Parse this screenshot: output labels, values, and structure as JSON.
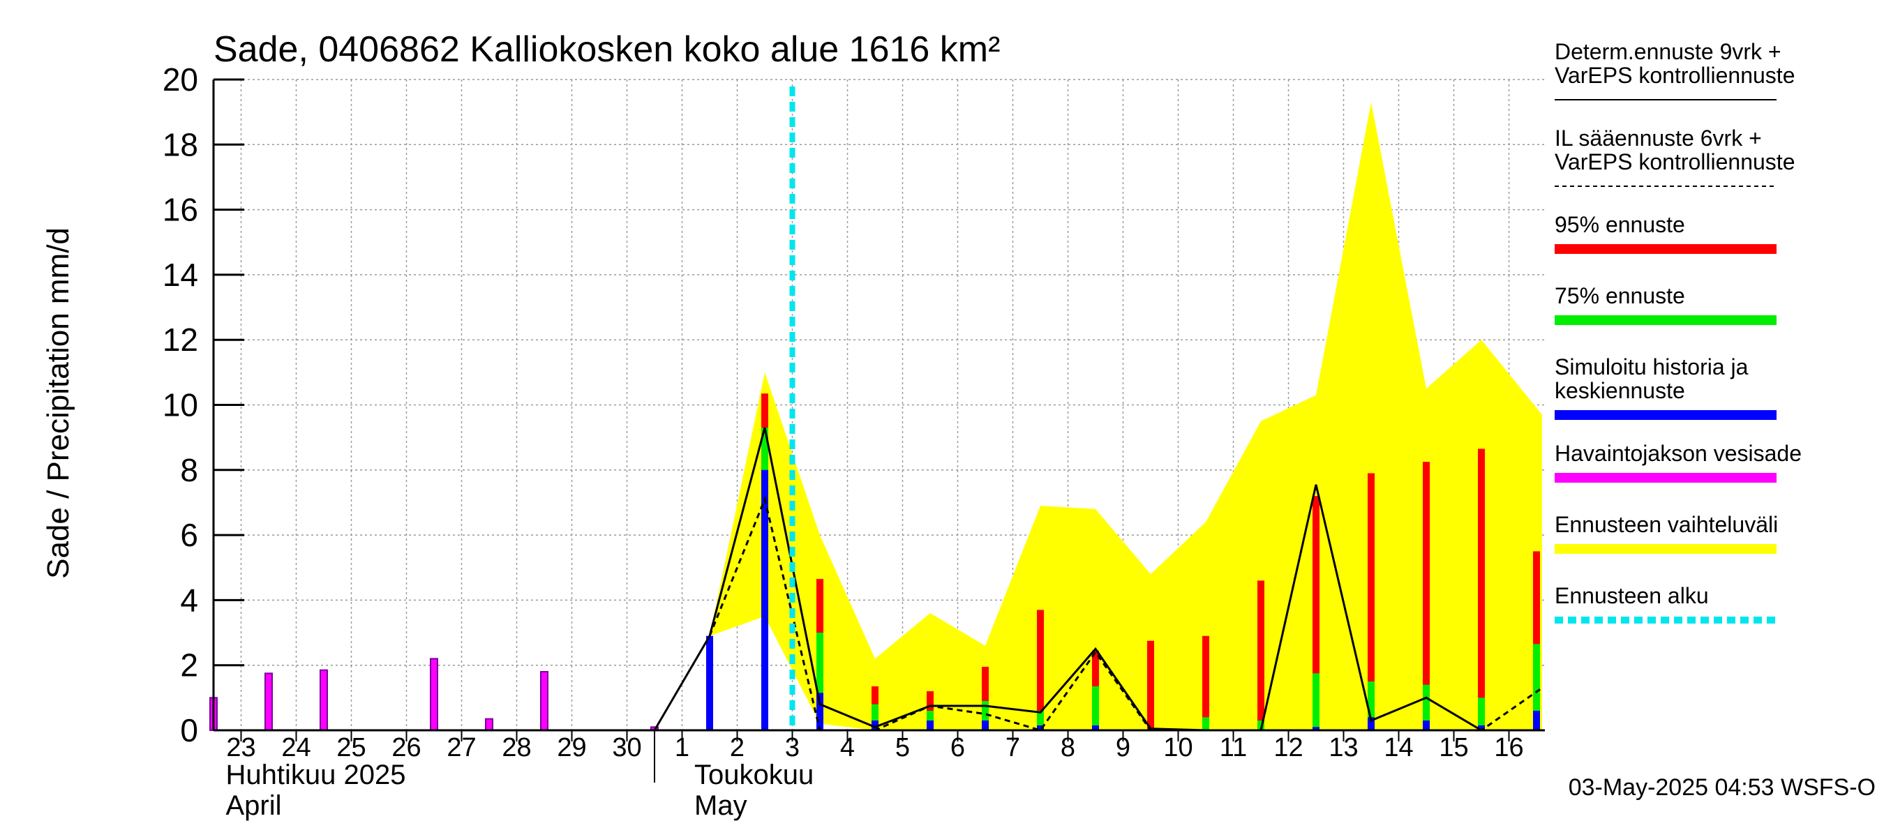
{
  "chart_data": {
    "type": "bar",
    "title": "Sade, 0406862 Kalliokosken koko alue 1616 km²",
    "ylabel": "Sade / Precipitation   mm/d",
    "ylim": [
      0,
      20
    ],
    "yticks": [
      0,
      2,
      4,
      6,
      8,
      10,
      12,
      14,
      16,
      18,
      20
    ],
    "x_range_days": [
      22.5,
      46.6
    ],
    "x_tick_labels": [
      {
        "x": 23,
        "label": "23"
      },
      {
        "x": 24,
        "label": "24"
      },
      {
        "x": 25,
        "label": "25"
      },
      {
        "x": 26,
        "label": "26"
      },
      {
        "x": 27,
        "label": "27"
      },
      {
        "x": 28,
        "label": "28"
      },
      {
        "x": 29,
        "label": "29"
      },
      {
        "x": 30,
        "label": "30"
      },
      {
        "x": 31,
        "label": "1"
      },
      {
        "x": 32,
        "label": "2"
      },
      {
        "x": 33,
        "label": "3"
      },
      {
        "x": 34,
        "label": "4"
      },
      {
        "x": 35,
        "label": "5"
      },
      {
        "x": 36,
        "label": "6"
      },
      {
        "x": 37,
        "label": "7"
      },
      {
        "x": 38,
        "label": "8"
      },
      {
        "x": 39,
        "label": "9"
      },
      {
        "x": 40,
        "label": "10"
      },
      {
        "x": 41,
        "label": "11"
      },
      {
        "x": 42,
        "label": "12"
      },
      {
        "x": 43,
        "label": "13"
      },
      {
        "x": 44,
        "label": "14"
      },
      {
        "x": 45,
        "label": "15"
      },
      {
        "x": 46,
        "label": "16"
      }
    ],
    "month_labels": [
      {
        "x": 23,
        "lines": [
          "Huhtikuu  2025",
          "April"
        ]
      },
      {
        "x": 31.5,
        "lines": [
          "Toukokuu",
          "May"
        ]
      }
    ],
    "month_boundary_x": 30.5,
    "forecast_start_x": 33,
    "observed": {
      "name": "Havaintojakson vesisade",
      "color": "#ff00ff",
      "x": [
        22.5,
        23.5,
        24.5,
        26.5,
        27.5,
        28.5,
        30.5
      ],
      "values": [
        1.0,
        1.75,
        1.85,
        2.2,
        0.35,
        1.8,
        0.1
      ]
    },
    "simulated_mean": {
      "name": "Simuloitu historia ja keskiennuste",
      "color": "#0000ff",
      "x": [
        31.5,
        32.5,
        33.5,
        34.5,
        35.5,
        36.5,
        37.5,
        38.5,
        39.5,
        40.5,
        41.5,
        42.5,
        43.5,
        44.5,
        45.5,
        46.5
      ],
      "values": [
        2.9,
        8.0,
        1.15,
        0.3,
        0.3,
        0.3,
        0.15,
        0.15,
        0.0,
        0.0,
        0.0,
        0.1,
        0.4,
        0.3,
        0.15,
        0.6
      ]
    },
    "p75": {
      "name": "75% ennuste",
      "color": "#00ee00",
      "x": [
        32.5,
        33.5,
        34.5,
        35.5,
        36.5,
        37.5,
        38.5,
        39.5,
        40.5,
        41.5,
        42.5,
        43.5,
        44.5,
        45.5,
        46.5
      ],
      "values": [
        9.3,
        3.0,
        0.8,
        0.6,
        0.9,
        0.6,
        1.35,
        0.0,
        0.4,
        0.3,
        1.75,
        1.5,
        1.4,
        1.0,
        2.65
      ]
    },
    "p95": {
      "name": "95% ennuste",
      "color": "#ff0000",
      "x": [
        32.5,
        33.5,
        34.5,
        35.5,
        36.5,
        37.5,
        38.5,
        39.5,
        40.5,
        41.5,
        42.5,
        43.5,
        44.5,
        45.5,
        46.5
      ],
      "values": [
        10.35,
        4.65,
        1.35,
        1.2,
        1.95,
        3.7,
        2.45,
        2.75,
        2.9,
        4.6,
        7.2,
        7.9,
        8.25,
        8.65,
        5.5
      ]
    },
    "range_band": {
      "name": "Ennusteen vaihteluväli",
      "color": "#ffff00",
      "x": [
        31.5,
        32.5,
        33.5,
        34.5,
        35.5,
        36.5,
        37.5,
        38.5,
        39.5,
        40.5,
        41.5,
        42.5,
        43.5,
        44.5,
        45.5,
        46.6
      ],
      "upper": [
        2.9,
        11.0,
        6.0,
        2.2,
        3.6,
        2.6,
        6.9,
        6.8,
        4.8,
        6.4,
        9.5,
        10.3,
        19.3,
        10.5,
        12.0,
        9.7
      ],
      "lower": [
        2.9,
        3.5,
        0.2,
        0.0,
        0.0,
        0.0,
        0.0,
        0.0,
        0.0,
        0.0,
        0.0,
        0.0,
        0.0,
        0.0,
        0.0,
        0.0
      ]
    },
    "deterministic": {
      "name": "Determ.ennuste 9vrk + VarEPS kontrolliennuste",
      "color": "#000000",
      "x": [
        30.5,
        31.5,
        32.5,
        33.5,
        34.5,
        35.5,
        36.5,
        37.5,
        38.5,
        39.5,
        40.5,
        41.5,
        42.5,
        43.5,
        44.5,
        45.5,
        46.6
      ],
      "values": [
        0.0,
        2.9,
        9.3,
        0.8,
        0.1,
        0.75,
        0.75,
        0.55,
        2.5,
        0.05,
        0.0,
        0.0,
        7.55,
        0.3,
        1.0,
        0.0,
        0.0
      ]
    },
    "il_forecast": {
      "name": "IL sääennuste 6vrk + VarEPS kontrolliennuste",
      "color": "#000000",
      "x": [
        31.5,
        32.5,
        33.5,
        34.5,
        35.5,
        36.5,
        37.5,
        38.5,
        39.5,
        40.5,
        41.5,
        42.5,
        43.5,
        44.5,
        45.5,
        46.6
      ],
      "values": [
        2.9,
        7.1,
        0.0,
        0.0,
        0.75,
        0.5,
        0.0,
        2.4,
        0.0,
        0.0,
        0.0,
        0.0,
        0.0,
        0.0,
        0.0,
        1.3
      ]
    },
    "legend": [
      {
        "lines": [
          "Determ.ennuste 9vrk +",
          "VarEPS kontrolliennuste"
        ],
        "color": "#000000",
        "style": "solid-thin"
      },
      {
        "lines": [
          "IL sääennuste 6vrk  +",
          "  VarEPS kontrolliennuste"
        ],
        "color": "#000000",
        "style": "dashed-thin"
      },
      {
        "lines": [
          "95% ennuste"
        ],
        "color": "#ff0000",
        "style": "thick"
      },
      {
        "lines": [
          "75% ennuste"
        ],
        "color": "#00ee00",
        "style": "thick"
      },
      {
        "lines": [
          "Simuloitu historia ja",
          "keskiennuste"
        ],
        "color": "#0000ff",
        "style": "thick"
      },
      {
        "lines": [
          "Havaintojakson vesisade"
        ],
        "color": "#ff00ff",
        "style": "thick"
      },
      {
        "lines": [
          "Ennusteen vaihteluväli"
        ],
        "color": "#ffff00",
        "style": "thick"
      },
      {
        "lines": [
          "Ennusteen alku"
        ],
        "color": "#00e5ee",
        "style": "dashed-thick"
      }
    ],
    "legend_placement": "right",
    "grid": true,
    "footer": "03-May-2025 04:53 WSFS-O"
  }
}
